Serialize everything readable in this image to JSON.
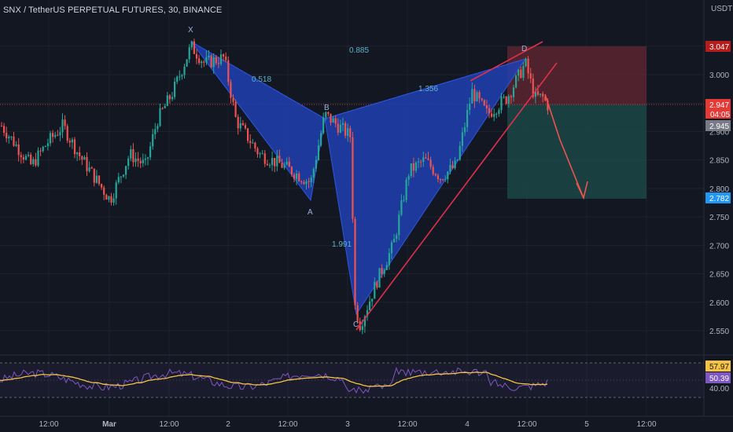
{
  "header": {
    "title": "SNX / TetherUS PERPETUAL FUTURES, 30, BINANCE"
  },
  "price_axis": {
    "unit": "USDT",
    "ticks": [
      "3.050",
      "3.000",
      "2.950",
      "2.900",
      "2.850",
      "2.800",
      "2.750",
      "2.700",
      "2.650",
      "2.600",
      "2.550"
    ]
  },
  "time_axis": {
    "ticks": [
      "12:00",
      "Mar",
      "12:00",
      "2",
      "12:00",
      "3",
      "12:00",
      "4",
      "12:00",
      "5",
      "12:00"
    ]
  },
  "price_tags": {
    "stop": "3.047",
    "current": "2.947",
    "countdown": "04:05",
    "last": "2.945",
    "target": "2.782"
  },
  "rsi": {
    "ticks": [
      "40.00"
    ],
    "value_rsi": "57.97",
    "value_ma": "50.39"
  },
  "pattern": {
    "points": {
      "X": "X",
      "A": "A",
      "B": "B",
      "C": "C",
      "D": "D"
    },
    "ratios": {
      "xb": "0.518",
      "xd": "0.885",
      "bd": "1.356",
      "ac": "1.991"
    }
  },
  "colors": {
    "background": "#131722",
    "bull": "#26a69a",
    "bear": "#ef5350",
    "pattern_fill": "#1f3fb0",
    "trendline": "#e0304a",
    "rsi_line": "#7e57c2",
    "rsi_ma": "#f5c242"
  },
  "chart_data": {
    "type": "candlestick",
    "title": "SNX / TetherUS PERPETUAL FUTURES, 30, BINANCE",
    "x_ticks": [
      "12:00",
      "Mar",
      "12:00",
      "2",
      "12:00",
      "3",
      "12:00",
      "4",
      "12:00",
      "5",
      "12:00"
    ],
    "ylim": [
      2.52,
      3.07
    ],
    "y_ticks": [
      3.05,
      3.0,
      2.95,
      2.9,
      2.85,
      2.8,
      2.75,
      2.7,
      2.65,
      2.6,
      2.55
    ],
    "harmonic_pattern": {
      "X": {
        "price": 3.06
      },
      "A": {
        "price": 2.78
      },
      "B": {
        "price": 2.94
      },
      "C": {
        "price": 2.56
      },
      "D": {
        "price": 3.03
      }
    },
    "trade_box": {
      "entry": 2.947,
      "stop": 3.047,
      "target": 2.782
    },
    "close_price": 2.945,
    "rsi": {
      "last": 57.97,
      "ma_last": 50.39,
      "levels": [
        70,
        50,
        30
      ]
    }
  }
}
